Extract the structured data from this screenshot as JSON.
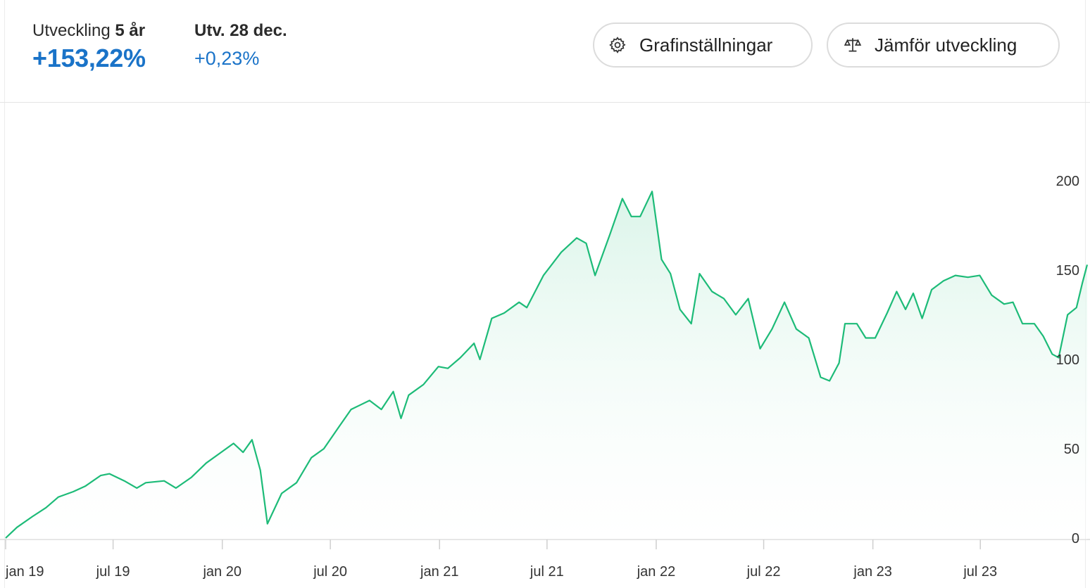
{
  "header": {
    "stat_5y": {
      "label_prefix": "Utveckling",
      "label_strong": "5 år",
      "value": "+153,22%"
    },
    "stat_day": {
      "label": "Utv. 28 dec.",
      "value": "+0,23%"
    }
  },
  "buttons": {
    "settings": {
      "label": "Grafinställningar",
      "icon": "gear-icon"
    },
    "compare": {
      "label": "Jämför utveckling",
      "icon": "scale-icon"
    }
  },
  "colors": {
    "accent": "#1a73c8",
    "line": "#1dbb78",
    "fill": "#d9f4e8"
  },
  "chart_data": {
    "type": "area",
    "title": "",
    "xlabel": "",
    "ylabel": "",
    "ylim": [
      0,
      220
    ],
    "y_ticks": [
      0,
      50,
      100,
      150,
      200
    ],
    "y_tick_labels": [
      "0",
      "50",
      "100",
      "150",
      "200"
    ],
    "x_ticks": [
      "2019-01-01",
      "2019-07-01",
      "2020-01-01",
      "2020-07-01",
      "2021-01-01",
      "2021-07-01",
      "2022-01-01",
      "2022-07-01",
      "2023-01-01",
      "2023-07-01"
    ],
    "x_tick_labels": [
      "jan 19",
      "jul 19",
      "jan 20",
      "jul 20",
      "jan 21",
      "jul 21",
      "jan 22",
      "jul 22",
      "jan 23",
      "jul 23"
    ],
    "xlim": [
      "2019-01-01",
      "2023-12-28"
    ],
    "series": [
      {
        "values": [
          [
            "2019-01-01",
            0
          ],
          [
            "2019-01-20",
            6
          ],
          [
            "2019-02-15",
            12
          ],
          [
            "2019-03-10",
            17
          ],
          [
            "2019-03-31",
            23
          ],
          [
            "2019-04-25",
            26
          ],
          [
            "2019-05-15",
            29
          ],
          [
            "2019-06-10",
            35
          ],
          [
            "2019-06-25",
            36
          ],
          [
            "2019-07-20",
            32
          ],
          [
            "2019-08-10",
            28
          ],
          [
            "2019-08-25",
            31
          ],
          [
            "2019-09-25",
            32
          ],
          [
            "2019-10-15",
            28
          ],
          [
            "2019-11-10",
            34
          ],
          [
            "2019-12-05",
            42
          ],
          [
            "2019-12-30",
            48
          ],
          [
            "2020-01-20",
            53
          ],
          [
            "2020-02-05",
            48
          ],
          [
            "2020-02-20",
            55
          ],
          [
            "2020-03-05",
            38
          ],
          [
            "2020-03-17",
            8
          ],
          [
            "2020-04-10",
            25
          ],
          [
            "2020-05-05",
            31
          ],
          [
            "2020-05-30",
            45
          ],
          [
            "2020-06-20",
            50
          ],
          [
            "2020-07-15",
            62
          ],
          [
            "2020-08-05",
            72
          ],
          [
            "2020-09-05",
            77
          ],
          [
            "2020-09-25",
            72
          ],
          [
            "2020-10-15",
            82
          ],
          [
            "2020-10-28",
            67
          ],
          [
            "2020-11-10",
            80
          ],
          [
            "2020-12-05",
            86
          ],
          [
            "2020-12-30",
            96
          ],
          [
            "2021-01-15",
            95
          ],
          [
            "2021-02-05",
            101
          ],
          [
            "2021-02-28",
            109
          ],
          [
            "2021-03-10",
            100
          ],
          [
            "2021-03-30",
            123
          ],
          [
            "2021-04-20",
            126
          ],
          [
            "2021-05-15",
            132
          ],
          [
            "2021-05-28",
            129
          ],
          [
            "2021-06-25",
            147
          ],
          [
            "2021-07-25",
            160
          ],
          [
            "2021-08-20",
            168
          ],
          [
            "2021-09-05",
            165
          ],
          [
            "2021-09-20",
            147
          ],
          [
            "2021-10-15",
            170
          ],
          [
            "2021-11-05",
            190
          ],
          [
            "2021-11-20",
            180
          ],
          [
            "2021-12-05",
            180
          ],
          [
            "2021-12-25",
            194
          ],
          [
            "2022-01-10",
            156
          ],
          [
            "2022-01-25",
            148
          ],
          [
            "2022-02-10",
            128
          ],
          [
            "2022-03-01",
            120
          ],
          [
            "2022-03-15",
            148
          ],
          [
            "2022-04-05",
            138
          ],
          [
            "2022-04-25",
            134
          ],
          [
            "2022-05-15",
            125
          ],
          [
            "2022-06-05",
            134
          ],
          [
            "2022-06-25",
            106
          ],
          [
            "2022-07-15",
            117
          ],
          [
            "2022-08-05",
            132
          ],
          [
            "2022-08-25",
            117
          ],
          [
            "2022-09-15",
            112
          ],
          [
            "2022-10-05",
            90
          ],
          [
            "2022-10-20",
            88
          ],
          [
            "2022-11-05",
            98
          ],
          [
            "2022-11-15",
            120
          ],
          [
            "2022-12-05",
            120
          ],
          [
            "2022-12-20",
            112
          ],
          [
            "2023-01-05",
            112
          ],
          [
            "2023-01-25",
            126
          ],
          [
            "2023-02-10",
            138
          ],
          [
            "2023-02-25",
            128
          ],
          [
            "2023-03-10",
            137
          ],
          [
            "2023-03-25",
            123
          ],
          [
            "2023-04-10",
            139
          ],
          [
            "2023-04-30",
            144
          ],
          [
            "2023-05-20",
            147
          ],
          [
            "2023-06-10",
            146
          ],
          [
            "2023-06-30",
            147
          ],
          [
            "2023-07-20",
            136
          ],
          [
            "2023-08-10",
            131
          ],
          [
            "2023-08-25",
            132
          ],
          [
            "2023-09-10",
            120
          ],
          [
            "2023-09-30",
            120
          ],
          [
            "2023-10-15",
            113
          ],
          [
            "2023-10-30",
            103
          ],
          [
            "2023-11-10",
            101
          ],
          [
            "2023-11-25",
            125
          ],
          [
            "2023-12-10",
            129
          ],
          [
            "2023-12-20",
            143
          ],
          [
            "2023-12-28",
            153
          ]
        ]
      }
    ]
  }
}
